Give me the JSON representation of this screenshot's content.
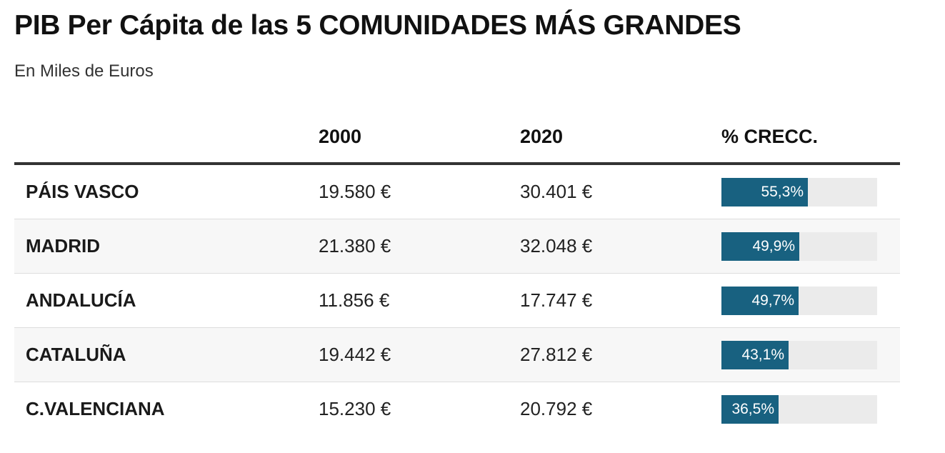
{
  "title": "PIB Per Cápita de las 5 COMUNIDADES MÁS GRANDES",
  "subtitle": "En Miles de Euros",
  "colors": {
    "bar_fill": "#186180",
    "bar_track": "#ebebeb",
    "row_alt": "#f7f7f7"
  },
  "chart_data": {
    "type": "table",
    "title": "PIB Per Cápita de las 5 COMUNIDADES MÁS GRANDES",
    "subtitle": "En Miles de Euros",
    "columns": [
      "",
      "2000",
      "2020",
      "% CRECC."
    ],
    "bar_scale_max": 100,
    "rows": [
      {
        "name": "PÁIS VASCO",
        "v2000": "19.580 €",
        "v2020": "30.401 €",
        "growth": 55.3,
        "growth_label": "55,3%"
      },
      {
        "name": "MADRID",
        "v2000": "21.380 €",
        "v2020": "32.048 €",
        "growth": 49.9,
        "growth_label": "49,9%"
      },
      {
        "name": "ANDALUCÍA",
        "v2000": "11.856 €",
        "v2020": "17.747 €",
        "growth": 49.7,
        "growth_label": "49,7%"
      },
      {
        "name": "CATALUÑA",
        "v2000": "19.442 €",
        "v2020": "27.812 €",
        "growth": 43.1,
        "growth_label": "43,1%"
      },
      {
        "name": "C.VALENCIANA",
        "v2000": "15.230 €",
        "v2020": "20.792 €",
        "growth": 36.5,
        "growth_label": "36,5%"
      }
    ]
  }
}
